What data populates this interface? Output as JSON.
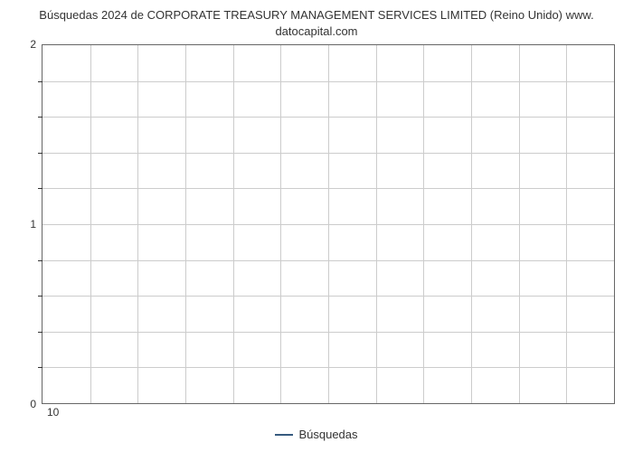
{
  "chart": {
    "type": "line",
    "title_line1": "Búsquedas 2024 de CORPORATE TREASURY MANAGEMENT SERVICES LIMITED (Reino Unido) www.",
    "title_line2": "datocapital.com",
    "title_fontsize": 13,
    "title_color": "#333333",
    "background_color": "#ffffff",
    "plot_border_color": "#666666",
    "grid_color": "#cccccc",
    "ylim": [
      0,
      2
    ],
    "y_major_ticks": [
      0,
      1,
      2
    ],
    "y_minor_step": 0.2,
    "x_major_count": 12,
    "x_tick_labels": [
      "10"
    ],
    "x_tick_positions_pct": [
      2
    ],
    "label_fontsize": 12,
    "label_color": "#333333",
    "legend": {
      "label": "Búsquedas",
      "color": "#375a7f",
      "line_width": 2
    },
    "series": []
  }
}
